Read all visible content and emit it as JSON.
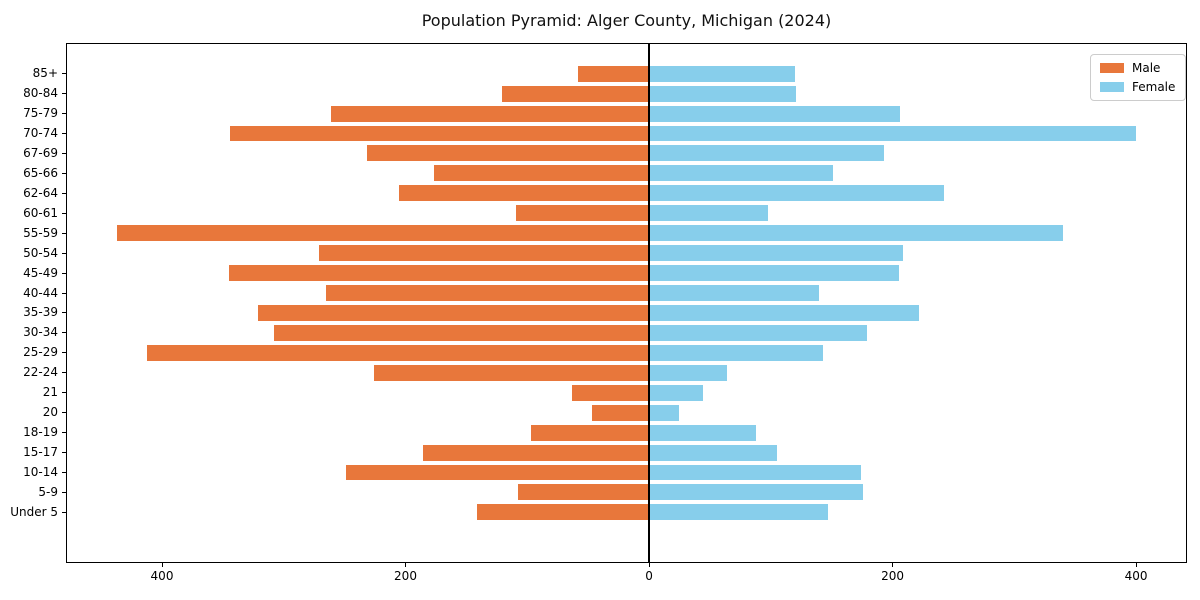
{
  "title": "Population Pyramid: Alger County, Michigan (2024)",
  "legend": {
    "items": [
      {
        "label": "Male",
        "color": "#e8773b"
      },
      {
        "label": "Female",
        "color": "#87ceeb"
      }
    ],
    "position": "upper right"
  },
  "colors": {
    "male": "#e8773b",
    "female": "#87ceeb",
    "axis": "#000000",
    "background": "#ffffff",
    "legend_border": "#cccccc"
  },
  "chart_data": {
    "type": "bar",
    "orientation": "horizontal-pyramid",
    "title": "Population Pyramid: Alger County, Michigan (2024)",
    "categories": [
      "85+",
      "80-84",
      "75-79",
      "70-74",
      "67-69",
      "65-66",
      "62-64",
      "60-61",
      "55-59",
      "50-54",
      "45-49",
      "40-44",
      "35-39",
      "30-34",
      "25-29",
      "22-24",
      "21",
      "20",
      "18-19",
      "15-17",
      "10-14",
      "5-9",
      "Under 5"
    ],
    "categories_order": "top-to-bottom",
    "series": [
      {
        "name": "Male",
        "side": "left",
        "color": "#e8773b",
        "values": [
          58,
          121,
          261,
          344,
          232,
          177,
          205,
          109,
          437,
          271,
          345,
          265,
          321,
          308,
          412,
          226,
          63,
          47,
          97,
          186,
          249,
          108,
          141
        ]
      },
      {
        "name": "Female",
        "side": "right",
        "color": "#87ceeb",
        "values": [
          120,
          121,
          206,
          400,
          193,
          151,
          242,
          98,
          340,
          209,
          205,
          140,
          222,
          179,
          143,
          64,
          44,
          25,
          88,
          105,
          174,
          176,
          147
        ]
      }
    ],
    "x_tick_values": [
      -400,
      -200,
      0,
      200,
      400
    ],
    "x_tick_labels": [
      "400",
      "200",
      "0",
      "200",
      "400"
    ],
    "xlim": [
      -478.85,
      441.85
    ],
    "xlabel": "",
    "ylabel": "",
    "grid": false,
    "zero_line": true,
    "legend_position": "upper right"
  }
}
